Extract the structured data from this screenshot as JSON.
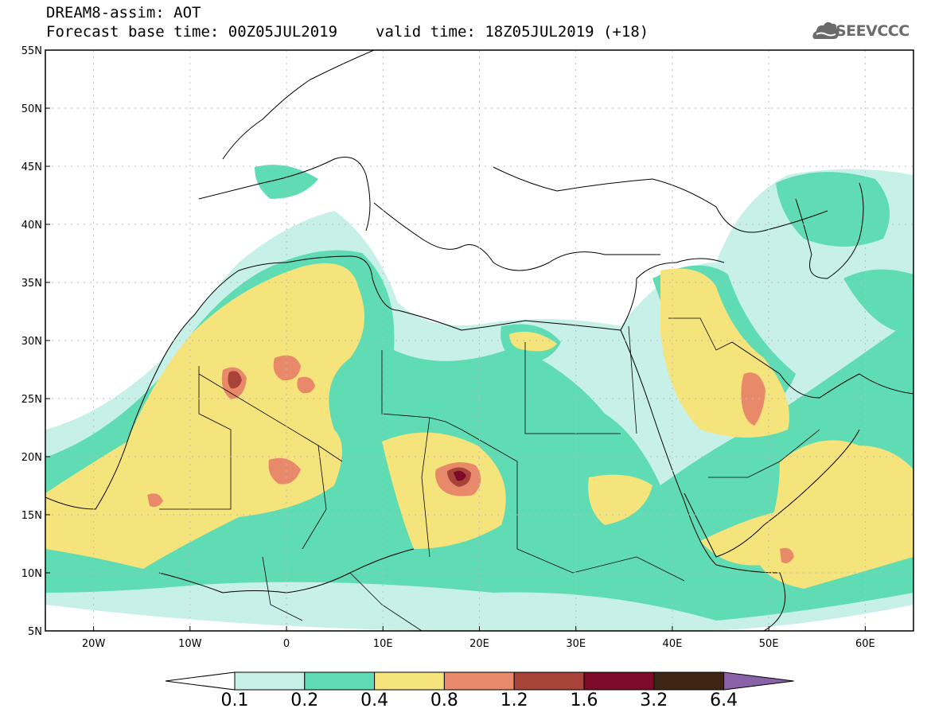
{
  "title": {
    "line1": "DREAM8-assim: AOT",
    "base_time": "Forecast base time: 00Z05JUL2019",
    "valid_time": "valid time: 18Z05JUL2019 (+18)"
  },
  "logo": {
    "text": "SEEVCCC",
    "icon": "cloud-icon",
    "color": "#6b6b6b"
  },
  "map": {
    "lon_range": [
      -25,
      65
    ],
    "lat_range": [
      5,
      55
    ],
    "lon_ticks": [
      {
        "value": -20,
        "label": "20W"
      },
      {
        "value": -10,
        "label": "10W"
      },
      {
        "value": 0,
        "label": "0"
      },
      {
        "value": 10,
        "label": "10E"
      },
      {
        "value": 20,
        "label": "20E"
      },
      {
        "value": 30,
        "label": "30E"
      },
      {
        "value": 40,
        "label": "40E"
      },
      {
        "value": 50,
        "label": "50E"
      },
      {
        "value": 60,
        "label": "60E"
      }
    ],
    "lat_ticks": [
      {
        "value": 5,
        "label": "5N"
      },
      {
        "value": 10,
        "label": "10N"
      },
      {
        "value": 15,
        "label": "15N"
      },
      {
        "value": 20,
        "label": "20N"
      },
      {
        "value": 25,
        "label": "25N"
      },
      {
        "value": 30,
        "label": "30N"
      },
      {
        "value": 35,
        "label": "35N"
      },
      {
        "value": 40,
        "label": "40N"
      },
      {
        "value": 45,
        "label": "45N"
      },
      {
        "value": 50,
        "label": "50N"
      },
      {
        "value": 55,
        "label": "55N"
      }
    ],
    "grid": true
  },
  "colorbar": {
    "levels": [
      "0.1",
      "0.2",
      "0.4",
      "0.8",
      "1.2",
      "1.6",
      "3.2",
      "6.4"
    ],
    "colors": [
      "#c6f0e8",
      "#5fdcb4",
      "#f5e37c",
      "#e8896a",
      "#a8433a",
      "#7c0a28",
      "#3d2614",
      "#8a62a8"
    ],
    "low_color": "#ffffff"
  }
}
